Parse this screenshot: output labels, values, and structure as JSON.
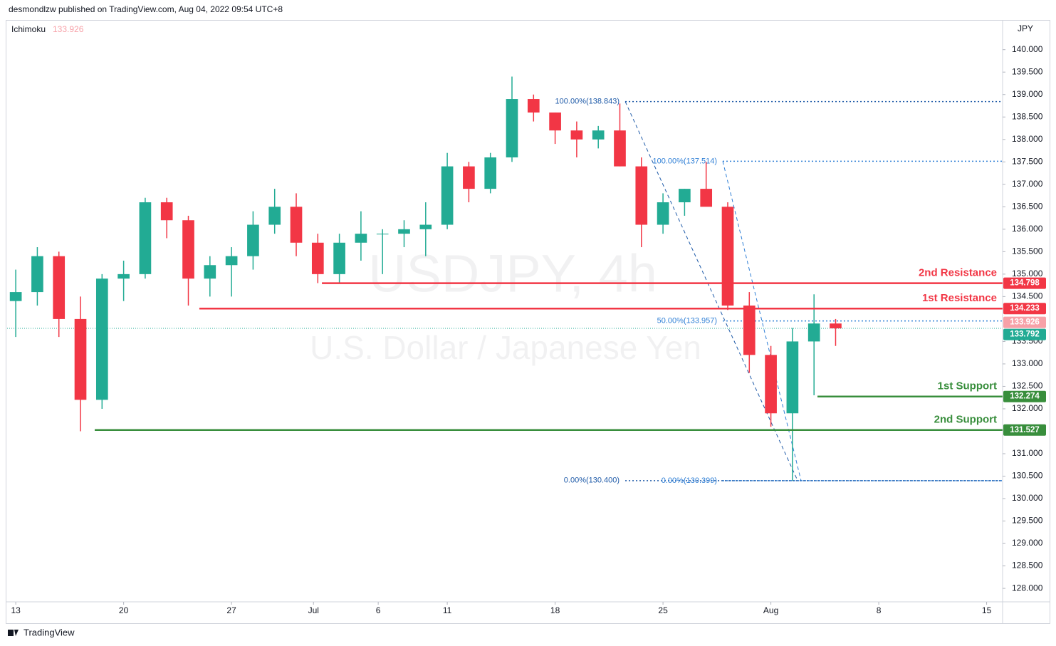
{
  "header": "desmondlzw published on TradingView.com, Aug 04, 2022 09:54 UTC+8",
  "footer": "TradingView",
  "chart_data": {
    "type": "candlestick",
    "watermark": "USDJPY, 4h",
    "subtitle": "U.S. Dollar / Japanese Yen",
    "currency": "JPY",
    "indicator": {
      "name": "Ichimoku",
      "value": 133.926,
      "color": "#f7a1a8"
    },
    "up_color": "#22ab94",
    "down_color": "#f23645",
    "x": [
      0,
      1,
      2,
      3,
      4,
      5,
      6,
      7,
      8,
      9,
      10,
      11,
      12,
      13,
      14,
      15,
      16,
      17,
      18,
      19,
      20,
      21,
      22,
      23,
      24,
      25,
      26,
      27,
      28,
      29,
      30,
      31,
      32,
      33,
      34,
      35,
      36,
      37,
      38
    ],
    "open": [
      134.4,
      134.6,
      135.4,
      134.0,
      132.2,
      134.9,
      135.0,
      136.6,
      136.2,
      134.9,
      135.2,
      135.4,
      136.1,
      136.5,
      135.7,
      135.0,
      135.7,
      135.9,
      135.9,
      136.0,
      136.1,
      137.4,
      136.9,
      137.6,
      138.9,
      138.6,
      138.2,
      138.0,
      138.2,
      137.4,
      136.1,
      136.6,
      136.9,
      136.5,
      134.3,
      133.2,
      131.9,
      133.5,
      133.9
    ],
    "high": [
      135.1,
      135.6,
      135.5,
      134.5,
      135.0,
      135.3,
      136.7,
      136.7,
      136.3,
      135.4,
      135.6,
      136.4,
      136.9,
      136.8,
      135.9,
      135.9,
      136.4,
      136.0,
      136.2,
      136.6,
      137.7,
      137.5,
      137.7,
      139.4,
      139.0,
      138.6,
      138.4,
      138.3,
      138.8,
      137.6,
      136.8,
      136.9,
      137.5,
      136.6,
      134.6,
      133.4,
      133.8,
      134.55,
      134.0
    ],
    "low": [
      133.6,
      134.3,
      133.6,
      131.5,
      132.0,
      134.4,
      134.9,
      135.8,
      134.3,
      134.5,
      134.5,
      135.1,
      135.9,
      135.4,
      134.8,
      134.8,
      135.3,
      135.0,
      135.6,
      135.4,
      136.0,
      136.6,
      136.8,
      137.5,
      138.4,
      137.9,
      137.6,
      137.8,
      137.4,
      135.6,
      135.9,
      136.3,
      136.6,
      134.2,
      132.8,
      131.6,
      130.399,
      132.3,
      133.4
    ],
    "close": [
      134.6,
      135.4,
      134.0,
      132.2,
      134.9,
      135.0,
      136.6,
      136.2,
      134.9,
      135.2,
      135.4,
      136.1,
      136.5,
      135.7,
      135.0,
      135.7,
      135.9,
      135.9,
      136.0,
      136.1,
      137.4,
      136.9,
      137.6,
      138.9,
      138.6,
      138.2,
      138.0,
      138.2,
      137.4,
      136.1,
      136.6,
      136.9,
      136.5,
      134.3,
      133.2,
      131.9,
      133.5,
      133.9,
      133.792
    ],
    "last_price": 133.792,
    "xlim": [
      -0.4,
      45.74
    ],
    "xticks": [
      {
        "value": 0,
        "label": "13"
      },
      {
        "value": 5,
        "label": "20"
      },
      {
        "value": 10,
        "label": "27"
      },
      {
        "value": 13.8,
        "label": "Jul"
      },
      {
        "value": 16.8,
        "label": "6"
      },
      {
        "value": 20,
        "label": "11"
      },
      {
        "value": 25,
        "label": "18"
      },
      {
        "value": 30,
        "label": "25"
      },
      {
        "value": 35,
        "label": "Aug"
      },
      {
        "value": 40,
        "label": "8"
      },
      {
        "value": 45,
        "label": "15"
      }
    ],
    "ylim": [
      127.7,
      140.63
    ],
    "yticks": [
      {
        "value": 140,
        "label": "140.000"
      },
      {
        "value": 139.5,
        "label": "139.500"
      },
      {
        "value": 139,
        "label": "139.000"
      },
      {
        "value": 138.5,
        "label": "138.500"
      },
      {
        "value": 138,
        "label": "138.000"
      },
      {
        "value": 137.5,
        "label": "137.500"
      },
      {
        "value": 137,
        "label": "137.000"
      },
      {
        "value": 136.5,
        "label": "136.500"
      },
      {
        "value": 136,
        "label": "136.000"
      },
      {
        "value": 135.5,
        "label": "135.500"
      },
      {
        "value": 135,
        "label": "135.000"
      },
      {
        "value": 134.5,
        "label": "134.500"
      },
      {
        "value": 133.5,
        "label": "133.500"
      },
      {
        "value": 133,
        "label": "133.000"
      },
      {
        "value": 132.5,
        "label": "132.500"
      },
      {
        "value": 132,
        "label": "132.000"
      },
      {
        "value": 131,
        "label": "131.000"
      },
      {
        "value": 130.5,
        "label": "130.500"
      },
      {
        "value": 130,
        "label": "130.000"
      },
      {
        "value": 129.5,
        "label": "129.500"
      },
      {
        "value": 129,
        "label": "129.000"
      },
      {
        "value": 128.5,
        "label": "128.500"
      },
      {
        "value": 128,
        "label": "128.000"
      }
    ],
    "levels": [
      {
        "name": "2nd Resistance",
        "value": 134.798,
        "color": "#f23645",
        "x_start": 14.19
      },
      {
        "name": "1st Resistance",
        "value": 134.233,
        "color": "#f23645",
        "x_start": 8.51
      },
      {
        "name": "1st Support",
        "value": 132.274,
        "color": "#388e3c",
        "x_start": 37.16
      },
      {
        "name": "2nd Support",
        "value": 131.527,
        "color": "#388e3c",
        "x_start": 3.66
      }
    ],
    "fibs": [
      {
        "color": "#1e5aa8",
        "x_start": 28.25,
        "x_end": 36.24,
        "levels": [
          {
            "value": 138.843,
            "label": "100.00%(138.843)"
          },
          {
            "value": 130.4,
            "label": "0.00%(130.400)"
          }
        ]
      },
      {
        "color": "#2f7fd6",
        "x_start": 32.77,
        "x_end": 36.4,
        "levels": [
          {
            "value": 137.514,
            "label": "100.00%(137.514)"
          },
          {
            "value": 133.957,
            "label": "50.00%(133.957)"
          },
          {
            "value": 130.399,
            "label": "0.00%(130.399)"
          }
        ]
      }
    ]
  }
}
